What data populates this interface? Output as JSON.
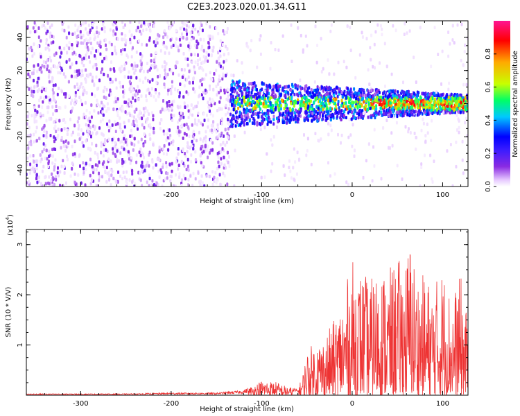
{
  "title": "C2E3.2023.020.01.34.G11",
  "chart_data": [
    {
      "type": "heatmap",
      "xlabel": "Height of straight line (km)",
      "ylabel": "Frequency (Hz)",
      "xlim": [
        -360,
        128
      ],
      "ylim": [
        -50,
        50
      ],
      "xticks": [
        "-300",
        "-200",
        "-100",
        "0",
        "100"
      ],
      "yticks": [
        "-40",
        "-20",
        "0",
        "20",
        "40"
      ],
      "colorbar": {
        "label": "Normalized spectral amplitude",
        "range": [
          0,
          1
        ],
        "ticks": [
          "0.0",
          "0.2",
          "0.4",
          "0.6",
          "0.8"
        ],
        "colormap": [
          "#ffffff",
          "#e6c8ff",
          "#8a2be2",
          "#3b1cff",
          "#0000ff",
          "#00c8ff",
          "#00ff66",
          "#c8ff00",
          "#ffaa00",
          "#ff0000",
          "#ff1493"
        ]
      },
      "description_features": {
        "noise_region_x": [
          -360,
          -135
        ],
        "signal_band_start_x": -135,
        "signal_band_center_hz": 0,
        "peak_amplitude_region_x": [
          20,
          128
        ]
      }
    },
    {
      "type": "line",
      "xlabel": "Height of straight line (km)",
      "ylabel": "SNR (10 * V/V)",
      "scale_label": "(x10",
      "scale_exponent": "4",
      "scale_suffix": ")",
      "xlim": [
        -360,
        128
      ],
      "ylim": [
        0,
        3.3
      ],
      "xticks": [
        "-300",
        "-200",
        "-100",
        "0",
        "100"
      ],
      "yticks": [
        "1",
        "2",
        "3"
      ],
      "series": [
        {
          "color": "#ee3333",
          "envelope": {
            "x": [
              -360,
              -250,
              -200,
              -150,
              -120,
              -105,
              -100,
              -85,
              -75,
              -60,
              -55,
              -50,
              -40,
              -30,
              -20,
              -10,
              0,
              10,
              20,
              30,
              40,
              50,
              60,
              65,
              70,
              80,
              90,
              100,
              110,
              120,
              128
            ],
            "max": [
              0.03,
              0.03,
              0.05,
              0.05,
              0.1,
              0.25,
              0.3,
              0.28,
              0.2,
              0.12,
              0.4,
              0.9,
              1.1,
              1.2,
              1.5,
              2.0,
              2.7,
              2.5,
              2.3,
              2.6,
              2.5,
              2.7,
              2.8,
              3.3,
              2.5,
              2.4,
              2.2,
              2.6,
              2.0,
              2.4,
              1.5
            ]
          }
        }
      ]
    }
  ]
}
